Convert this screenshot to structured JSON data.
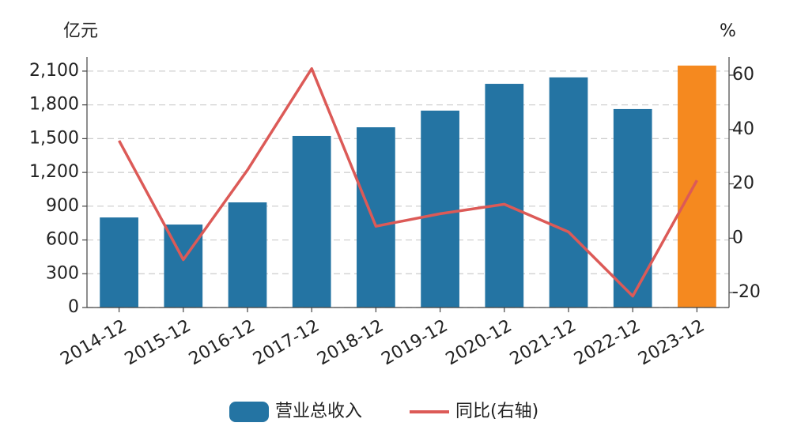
{
  "chart_data": {
    "type": "bar_line",
    "y_unit": "亿元",
    "y2_unit": "%",
    "categories": [
      "2014-12",
      "2015-12",
      "2016-12",
      "2017-12",
      "2018-12",
      "2019-12",
      "2020-12",
      "2021-12",
      "2022-12",
      "2023-12"
    ],
    "series": [
      {
        "name": "营业总收入",
        "type": "bar",
        "color": "#2474a3",
        "colors": [
          "#2474a3",
          "#2474a3",
          "#2474a3",
          "#2474a3",
          "#2474a3",
          "#2474a3",
          "#2474a3",
          "#2474a3",
          "#2474a3",
          "#f5891f"
        ],
        "values": [
          800,
          737,
          934,
          1524,
          1601,
          1749,
          1987,
          2044,
          1763,
          2149
        ]
      },
      {
        "name": "同比(右轴)",
        "type": "line",
        "axis": "y2",
        "color": "#dc5a57",
        "values": [
          35.9,
          -7.9,
          25.1,
          62.4,
          4.4,
          9.0,
          12.5,
          2.3,
          -21.3,
          21.3
        ]
      }
    ],
    "ylim": [
      0,
      2226
    ],
    "yticks": [
      0,
      300,
      600,
      900,
      {
        "value": 1200,
        "label": "1,200"
      },
      {
        "value": 1500,
        "label": "1,500"
      },
      {
        "value": 1800,
        "label": "1,800"
      },
      {
        "value": 2100,
        "label": "2,100"
      }
    ],
    "y2lim": [
      -25.5,
      66.7
    ],
    "y2ticks": [
      -20,
      0,
      20,
      40,
      60
    ],
    "grid": true
  }
}
